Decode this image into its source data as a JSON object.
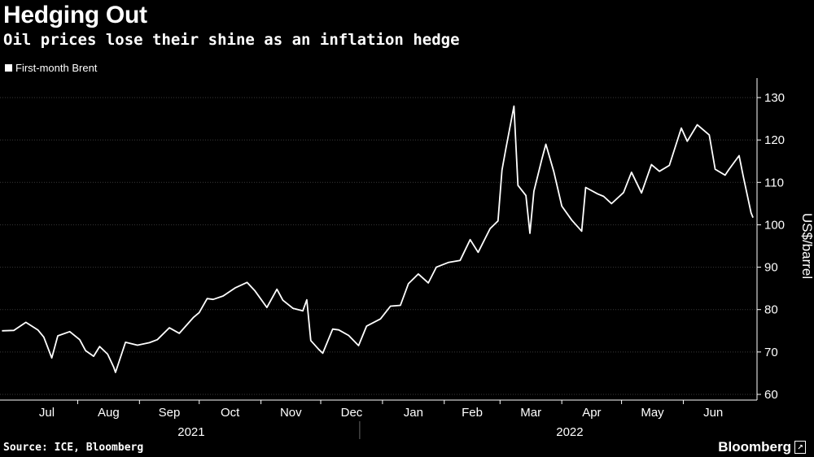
{
  "header": {
    "title": "Hedging Out",
    "subtitle": "Oil prices lose their shine as an inflation hedge"
  },
  "footer": {
    "source": "Source: ICE, Bloomberg",
    "brand": "Bloomberg"
  },
  "colors": {
    "background": "#000000",
    "line": "#ffffff",
    "grid": "#3a3a3a",
    "text": "#ffffff"
  },
  "chart_data": {
    "type": "line",
    "title": "Hedging Out",
    "subtitle": "Oil prices lose their shine as an inflation hedge",
    "ylabel": "US$/barrel",
    "ylim": [
      60,
      130
    ],
    "yticks": [
      60,
      70,
      80,
      90,
      100,
      110,
      120,
      130
    ],
    "grid": true,
    "legend": "top-left",
    "months": [
      {
        "label": "Jul",
        "year": "2021"
      },
      {
        "label": "Aug",
        "year": "2021"
      },
      {
        "label": "Sep",
        "year": "2021"
      },
      {
        "label": "Oct",
        "year": "2021"
      },
      {
        "label": "Nov",
        "year": "2021"
      },
      {
        "label": "Dec",
        "year": "2021"
      },
      {
        "label": "Jan",
        "year": "2022"
      },
      {
        "label": "Feb",
        "year": "2022"
      },
      {
        "label": "Mar",
        "year": "2022"
      },
      {
        "label": "Apr",
        "year": "2022"
      },
      {
        "label": "May",
        "year": "2022"
      },
      {
        "label": "Jun",
        "year": "2022"
      }
    ],
    "years": [
      "2021",
      "2022"
    ],
    "series": [
      {
        "name": "First-month Brent",
        "points": [
          [
            "2021-06-24",
            75.0
          ],
          [
            "2021-06-30",
            75.1
          ],
          [
            "2021-07-06",
            77.0
          ],
          [
            "2021-07-12",
            75.2
          ],
          [
            "2021-07-15",
            73.5
          ],
          [
            "2021-07-19",
            68.6
          ],
          [
            "2021-07-22",
            73.8
          ],
          [
            "2021-07-28",
            74.8
          ],
          [
            "2021-08-02",
            72.9
          ],
          [
            "2021-08-05",
            70.3
          ],
          [
            "2021-08-09",
            69.0
          ],
          [
            "2021-08-12",
            71.3
          ],
          [
            "2021-08-16",
            69.5
          ],
          [
            "2021-08-19",
            66.5
          ],
          [
            "2021-08-20",
            65.2
          ],
          [
            "2021-08-25",
            72.3
          ],
          [
            "2021-08-31",
            71.6
          ],
          [
            "2021-09-06",
            72.2
          ],
          [
            "2021-09-10",
            72.9
          ],
          [
            "2021-09-16",
            75.7
          ],
          [
            "2021-09-21",
            74.4
          ],
          [
            "2021-09-28",
            78.1
          ],
          [
            "2021-10-01",
            79.3
          ],
          [
            "2021-10-05",
            82.6
          ],
          [
            "2021-10-08",
            82.4
          ],
          [
            "2021-10-13",
            83.2
          ],
          [
            "2021-10-19",
            85.1
          ],
          [
            "2021-10-25",
            86.4
          ],
          [
            "2021-10-29",
            84.4
          ],
          [
            "2021-11-04",
            80.5
          ],
          [
            "2021-11-09",
            84.8
          ],
          [
            "2021-11-12",
            82.2
          ],
          [
            "2021-11-17",
            80.3
          ],
          [
            "2021-11-22",
            79.7
          ],
          [
            "2021-11-24",
            82.3
          ],
          [
            "2021-11-26",
            72.7
          ],
          [
            "2021-11-30",
            70.6
          ],
          [
            "2021-12-02",
            69.7
          ],
          [
            "2021-12-07",
            75.4
          ],
          [
            "2021-12-10",
            75.2
          ],
          [
            "2021-12-15",
            73.9
          ],
          [
            "2021-12-20",
            71.5
          ],
          [
            "2021-12-24",
            76.1
          ],
          [
            "2021-12-31",
            77.8
          ],
          [
            "2022-01-05",
            80.8
          ],
          [
            "2022-01-10",
            81.0
          ],
          [
            "2022-01-14",
            86.1
          ],
          [
            "2022-01-19",
            88.4
          ],
          [
            "2022-01-24",
            86.3
          ],
          [
            "2022-01-28",
            90.0
          ],
          [
            "2022-02-03",
            91.1
          ],
          [
            "2022-02-09",
            91.6
          ],
          [
            "2022-02-14",
            96.5
          ],
          [
            "2022-02-18",
            93.5
          ],
          [
            "2022-02-24",
            99.1
          ],
          [
            "2022-02-28",
            100.9
          ],
          [
            "2022-03-02",
            112.9
          ],
          [
            "2022-03-04",
            118.1
          ],
          [
            "2022-03-08",
            127.98
          ],
          [
            "2022-03-10",
            109.3
          ],
          [
            "2022-03-14",
            106.9
          ],
          [
            "2022-03-16",
            98.0
          ],
          [
            "2022-03-18",
            107.9
          ],
          [
            "2022-03-22",
            115.5
          ],
          [
            "2022-03-24",
            119.0
          ],
          [
            "2022-03-28",
            112.5
          ],
          [
            "2022-04-01",
            104.4
          ],
          [
            "2022-04-06",
            101.1
          ],
          [
            "2022-04-11",
            98.5
          ],
          [
            "2022-04-13",
            108.8
          ],
          [
            "2022-04-19",
            107.3
          ],
          [
            "2022-04-22",
            106.7
          ],
          [
            "2022-04-26",
            104.99
          ],
          [
            "2022-05-02",
            107.6
          ],
          [
            "2022-05-06",
            112.4
          ],
          [
            "2022-05-11",
            107.5
          ],
          [
            "2022-05-16",
            114.2
          ],
          [
            "2022-05-20",
            112.6
          ],
          [
            "2022-05-25",
            114.0
          ],
          [
            "2022-05-31",
            122.8
          ],
          [
            "2022-06-03",
            119.7
          ],
          [
            "2022-06-08",
            123.6
          ],
          [
            "2022-06-14",
            121.2
          ],
          [
            "2022-06-17",
            113.1
          ],
          [
            "2022-06-22",
            111.7
          ],
          [
            "2022-06-24",
            113.1
          ],
          [
            "2022-06-29",
            116.3
          ],
          [
            "2022-07-01",
            111.6
          ],
          [
            "2022-07-05",
            102.8
          ],
          [
            "2022-07-06",
            101.7
          ]
        ]
      }
    ]
  }
}
